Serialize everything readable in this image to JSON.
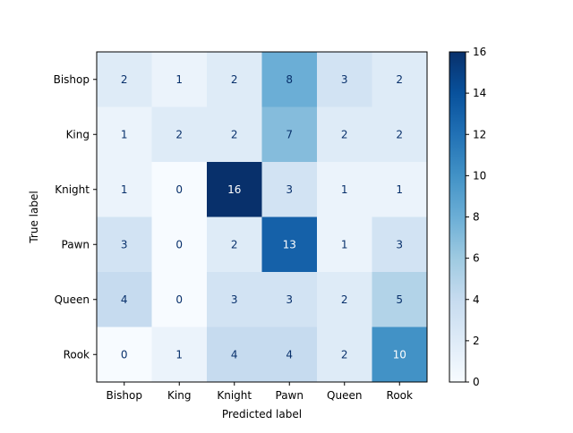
{
  "chart_data": {
    "type": "heatmap",
    "title": "",
    "xlabel": "Predicted label",
    "ylabel": "True label",
    "x_categories": [
      "Bishop",
      "King",
      "Knight",
      "Pawn",
      "Queen",
      "Rook"
    ],
    "y_categories": [
      "Bishop",
      "King",
      "Knight",
      "Pawn",
      "Queen",
      "Rook"
    ],
    "values": [
      [
        2,
        1,
        2,
        8,
        3,
        2
      ],
      [
        1,
        2,
        2,
        7,
        2,
        2
      ],
      [
        1,
        0,
        16,
        3,
        1,
        1
      ],
      [
        3,
        0,
        2,
        13,
        1,
        3
      ],
      [
        4,
        0,
        3,
        3,
        2,
        5
      ],
      [
        0,
        1,
        4,
        4,
        2,
        10
      ]
    ],
    "colormap": "Blues",
    "color_range": [
      0,
      16
    ],
    "colorbar_ticks": [
      "0",
      "2",
      "4",
      "6",
      "8",
      "10",
      "12",
      "14",
      "16"
    ],
    "text_color_dark": "#08306b",
    "text_color_light": "#ffffff"
  }
}
